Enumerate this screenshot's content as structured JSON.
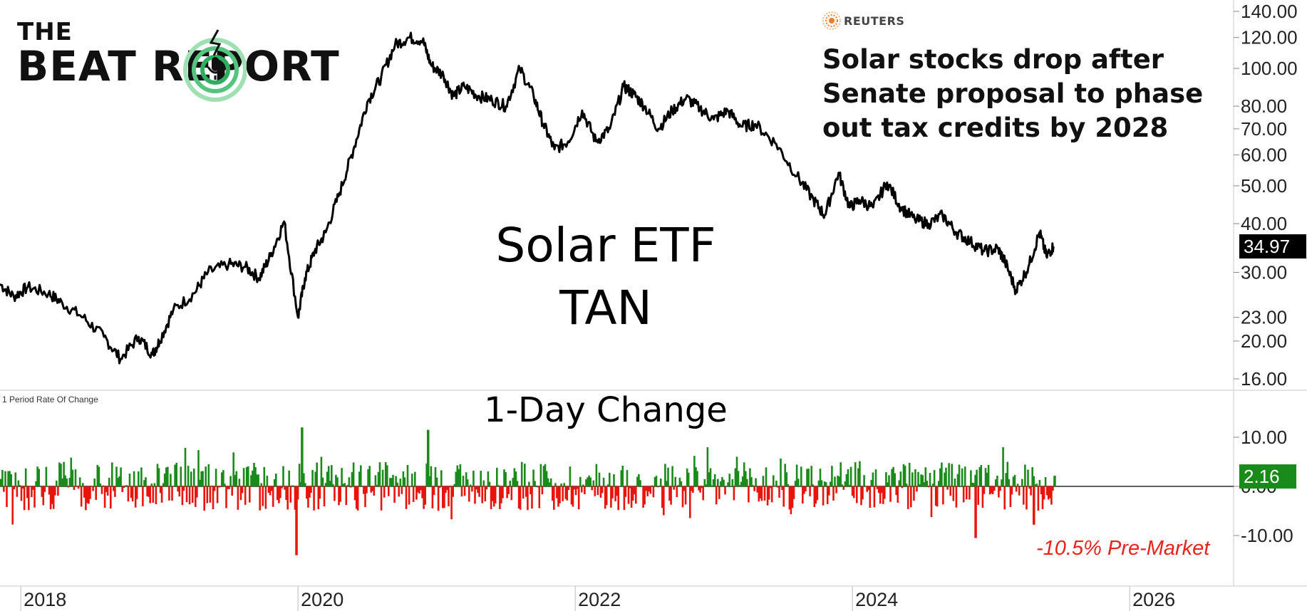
{
  "brand": {
    "line1": "THE",
    "line2": "BEAT REPORT"
  },
  "source": {
    "name": "REUTERS"
  },
  "headline": "Solar stocks drop after Senate proposal to phase out tax credits by 2028",
  "labels": {
    "etf_name": "Solar ETF",
    "ticker": "TAN",
    "lower_panel": "1-Day Change",
    "indicator": "1 Period Rate Of Change",
    "premarket_note": "-10.5% Pre-Market"
  },
  "colors": {
    "price_line": "#000000",
    "up_bar": "#1a8a1a",
    "down_bar": "#e8140c",
    "last_price_bg": "#000000",
    "last_change_bg": "#1a8a1a",
    "premarket_text": "#e8231b",
    "reuters_orange": "#f47b20",
    "logo_green": "#2fae5f"
  },
  "chart_data": [
    {
      "type": "line",
      "title": "Solar ETF TAN",
      "y_scale": "log",
      "y_ticks": [
        "140.00",
        "120.00",
        "100.00",
        "80.00",
        "70.00",
        "60.00",
        "50.00",
        "40.00",
        "30.00",
        "23.00",
        "20.00",
        "16.00"
      ],
      "last_value": "34.97",
      "x_ticks": [
        "2018",
        "2020",
        "2022",
        "2024",
        "2026"
      ],
      "x_range": [
        2017.85,
        2026.75
      ],
      "grid": false,
      "series": [
        {
          "x": [
            2017.85,
            2017.95,
            2018.05,
            2018.2,
            2018.3,
            2018.45,
            2018.6,
            2018.72,
            2018.85,
            2018.95,
            2019.0,
            2019.1,
            2019.25,
            2019.35,
            2019.5,
            2019.62,
            2019.72,
            2019.8,
            2019.9,
            2020.0,
            2020.05,
            2020.12,
            2020.2,
            2020.3,
            2020.4,
            2020.5,
            2020.6,
            2020.7,
            2020.8,
            2020.9,
            2020.96,
            2021.05,
            2021.12,
            2021.2,
            2021.3,
            2021.4,
            2021.5,
            2021.6,
            2021.7,
            2021.77,
            2021.85,
            2021.95,
            2022.05,
            2022.15,
            2022.25,
            2022.35,
            2022.42,
            2022.5,
            2022.6,
            2022.7,
            2022.8,
            2022.9,
            2023.0,
            2023.1,
            2023.2,
            2023.3,
            2023.45,
            2023.6,
            2023.72,
            2023.8,
            2023.9,
            2023.98,
            2024.05,
            2024.15,
            2024.25,
            2024.35,
            2024.45,
            2024.55,
            2024.65,
            2024.75,
            2024.85,
            2024.95,
            2025.05,
            2025.1,
            2025.18,
            2025.27,
            2025.35,
            2025.4,
            2025.45
          ],
          "y": [
            28.0,
            26.0,
            27.5,
            26.5,
            25.0,
            23.0,
            20.5,
            18.0,
            20.5,
            18.5,
            20.0,
            24.0,
            26.5,
            30.0,
            31.5,
            31.0,
            29.0,
            33.0,
            40.5,
            23.0,
            29.0,
            34.0,
            38.0,
            48.0,
            62.0,
            82.0,
            95.0,
            115.0,
            120.0,
            118.0,
            102.0,
            96.0,
            85.0,
            90.0,
            85.0,
            83.0,
            80.0,
            100.0,
            85.0,
            72.0,
            62.0,
            65.0,
            78.0,
            65.0,
            70.0,
            90.0,
            86.0,
            80.0,
            70.0,
            78.0,
            84.0,
            79.0,
            74.0,
            78.0,
            71.0,
            72.0,
            64.0,
            53.0,
            46.0,
            42.0,
            54.0,
            44.0,
            46.0,
            44.0,
            51.0,
            44.0,
            41.0,
            40.0,
            42.0,
            38.0,
            36.0,
            34.0,
            34.5,
            32.0,
            27.0,
            31.0,
            38.0,
            33.0,
            34.97
          ]
        }
      ]
    },
    {
      "type": "bar",
      "title": "1-Day Change",
      "indicator": "1 Period Rate Of Change",
      "y_ticks": [
        "10.00",
        "0.00",
        "-10.00"
      ],
      "last_value": "2.16",
      "notable_values": [
        {
          "x": 2019.98,
          "y": -14.0
        },
        {
          "x": 2020.02,
          "y": 12.0
        },
        {
          "x": 2020.93,
          "y": 11.5
        },
        {
          "x": 2024.88,
          "y": -10.5
        },
        {
          "x": 2025.3,
          "y": -7.8
        },
        {
          "x": 2025.45,
          "y": 2.16
        }
      ],
      "typical_range": [
        -5,
        5
      ],
      "premarket_annotation": "-10.5% Pre-Market"
    }
  ]
}
